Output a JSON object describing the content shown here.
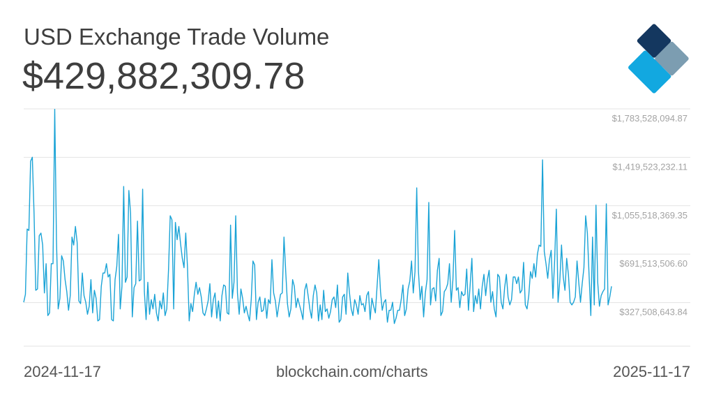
{
  "header": {
    "title": "USD Exchange Trade Volume",
    "current_value": "$429,882,309.78"
  },
  "footer": {
    "start_date": "2024-11-17",
    "source": "blockchain.com/charts",
    "end_date": "2025-11-17"
  },
  "colors": {
    "line": "#1aa3d6",
    "grid": "#e3e3e3",
    "tick_text": "#a3a3a3",
    "logo_dark": "#14375f",
    "logo_gray": "#7c9db1",
    "logo_blue": "#2d4fc1",
    "logo_light": "#a9d2e4",
    "logo_cyan": "#12a8e0"
  },
  "chart_data": {
    "type": "line",
    "title": "USD Exchange Trade Volume",
    "x_range": [
      "2024-11-17",
      "2025-11-17"
    ],
    "ylim": [
      0,
      1783528094.87
    ],
    "y_ticks": [
      {
        "value": 1783528094.87,
        "label": "$1,783,528,094.87"
      },
      {
        "value": 1419523232.11,
        "label": "$1,419,523,232.11"
      },
      {
        "value": 1055518369.35,
        "label": "$1,055,518,369.35"
      },
      {
        "value": 691513506.6,
        "label": "$691,513,506.60"
      },
      {
        "value": 327508643.84,
        "label": "$327,508,643.84"
      }
    ],
    "grid": true,
    "series": [
      {
        "values": [
          330000000,
          390000000,
          880000000,
          870000000,
          1390000000,
          1420000000,
          1000000000,
          420000000,
          430000000,
          830000000,
          850000000,
          760000000,
          400000000,
          620000000,
          230000000,
          250000000,
          620000000,
          620000000,
          1780000000,
          800000000,
          280000000,
          360000000,
          680000000,
          640000000,
          500000000,
          410000000,
          270000000,
          380000000,
          820000000,
          760000000,
          900000000,
          780000000,
          340000000,
          320000000,
          550000000,
          380000000,
          330000000,
          240000000,
          300000000,
          500000000,
          250000000,
          420000000,
          360000000,
          190000000,
          200000000,
          450000000,
          550000000,
          550000000,
          620000000,
          520000000,
          540000000,
          200000000,
          190000000,
          500000000,
          600000000,
          840000000,
          280000000,
          450000000,
          1200000000,
          480000000,
          520000000,
          1170000000,
          1000000000,
          220000000,
          440000000,
          470000000,
          940000000,
          490000000,
          500000000,
          1180000000,
          410000000,
          200000000,
          480000000,
          240000000,
          350000000,
          280000000,
          390000000,
          250000000,
          190000000,
          340000000,
          280000000,
          400000000,
          230000000,
          280000000,
          570000000,
          980000000,
          950000000,
          280000000,
          930000000,
          800000000,
          900000000,
          770000000,
          660000000,
          590000000,
          850000000,
          600000000,
          190000000,
          320000000,
          260000000,
          390000000,
          480000000,
          390000000,
          440000000,
          370000000,
          250000000,
          230000000,
          280000000,
          340000000,
          470000000,
          220000000,
          350000000,
          400000000,
          210000000,
          340000000,
          190000000,
          380000000,
          460000000,
          450000000,
          250000000,
          240000000,
          910000000,
          360000000,
          480000000,
          980000000,
          400000000,
          240000000,
          430000000,
          360000000,
          250000000,
          300000000,
          240000000,
          190000000,
          350000000,
          640000000,
          610000000,
          200000000,
          330000000,
          370000000,
          260000000,
          270000000,
          360000000,
          210000000,
          350000000,
          320000000,
          650000000,
          400000000,
          340000000,
          220000000,
          310000000,
          390000000,
          400000000,
          820000000,
          560000000,
          320000000,
          220000000,
          280000000,
          500000000,
          450000000,
          290000000,
          360000000,
          310000000,
          260000000,
          200000000,
          420000000,
          470000000,
          380000000,
          280000000,
          210000000,
          380000000,
          460000000,
          400000000,
          190000000,
          310000000,
          200000000,
          420000000,
          260000000,
          280000000,
          210000000,
          260000000,
          350000000,
          370000000,
          290000000,
          460000000,
          180000000,
          200000000,
          370000000,
          390000000,
          240000000,
          550000000,
          400000000,
          280000000,
          230000000,
          350000000,
          310000000,
          240000000,
          380000000,
          310000000,
          320000000,
          260000000,
          380000000,
          410000000,
          200000000,
          360000000,
          300000000,
          250000000,
          450000000,
          650000000,
          410000000,
          270000000,
          330000000,
          350000000,
          180000000,
          270000000,
          270000000,
          330000000,
          170000000,
          210000000,
          270000000,
          270000000,
          350000000,
          460000000,
          230000000,
          280000000,
          430000000,
          490000000,
          640000000,
          400000000,
          560000000,
          1190000000,
          560000000,
          350000000,
          450000000,
          220000000,
          400000000,
          500000000,
          1080000000,
          310000000,
          430000000,
          440000000,
          340000000,
          570000000,
          660000000,
          230000000,
          260000000,
          410000000,
          430000000,
          470000000,
          620000000,
          330000000,
          500000000,
          870000000,
          420000000,
          440000000,
          290000000,
          410000000,
          380000000,
          390000000,
          580000000,
          270000000,
          460000000,
          660000000,
          260000000,
          380000000,
          320000000,
          430000000,
          280000000,
          450000000,
          540000000,
          380000000,
          500000000,
          570000000,
          330000000,
          410000000,
          280000000,
          220000000,
          540000000,
          520000000,
          330000000,
          280000000,
          440000000,
          540000000,
          370000000,
          310000000,
          350000000,
          520000000,
          520000000,
          470000000,
          520000000,
          400000000,
          420000000,
          630000000,
          310000000,
          280000000,
          380000000,
          560000000,
          510000000,
          620000000,
          520000000,
          690000000,
          760000000,
          750000000,
          1400000000,
          710000000,
          620000000,
          510000000,
          650000000,
          720000000,
          360000000,
          640000000,
          1030000000,
          330000000,
          490000000,
          760000000,
          520000000,
          420000000,
          660000000,
          540000000,
          330000000,
          310000000,
          330000000,
          370000000,
          640000000,
          480000000,
          330000000,
          470000000,
          590000000,
          980000000,
          850000000,
          530000000,
          230000000,
          820000000,
          310000000,
          1060000000,
          480000000,
          300000000,
          380000000,
          410000000,
          430000000,
          1070000000,
          310000000,
          370000000,
          450000000
        ]
      }
    ]
  }
}
